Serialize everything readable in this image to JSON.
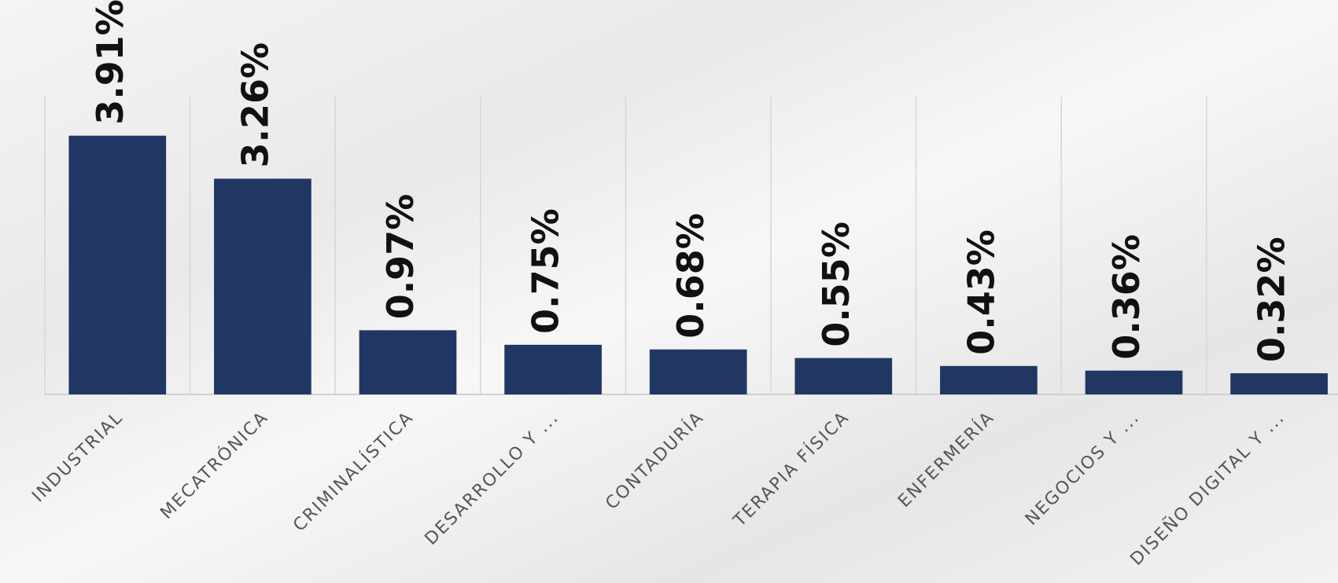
{
  "chart_data": {
    "type": "bar",
    "categories": [
      "INDUSTRIAL",
      "MECATRÓNICA",
      "CRIMINALÍSTICA",
      "DESARROLLO Y ...",
      "CONTADURÍA",
      "TERAPIA FÍSICA",
      "ENFERMERÍA",
      "NEGOCIOS Y ...",
      "DISEÑO DIGITAL Y ..."
    ],
    "values": [
      3.91,
      3.26,
      0.97,
      0.75,
      0.68,
      0.55,
      0.43,
      0.36,
      0.32
    ],
    "value_labels": [
      "3.91%",
      "3.26%",
      "0.97%",
      "0.75%",
      "0.68%",
      "0.55%",
      "0.43%",
      "0.36%",
      "0.32%"
    ],
    "color": "#213763",
    "ylim": [
      0,
      4.5
    ]
  }
}
